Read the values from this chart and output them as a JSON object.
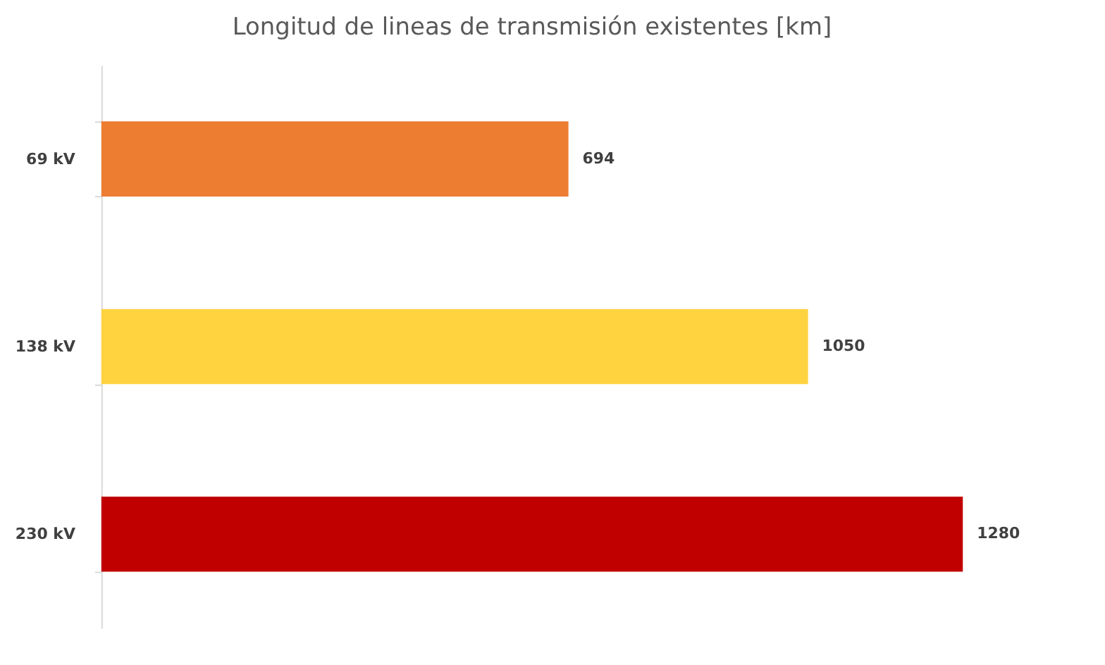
{
  "chart_data": {
    "type": "bar",
    "orientation": "horizontal",
    "title": "Longitud de lineas de transmisión existentes [km]",
    "categories": [
      "69 kV",
      "138 kV",
      "230 kV"
    ],
    "values": [
      694,
      1050,
      1280
    ],
    "colors": [
      "#ed7d31",
      "#ffd23f",
      "#c00000"
    ],
    "data_labels": true
  }
}
